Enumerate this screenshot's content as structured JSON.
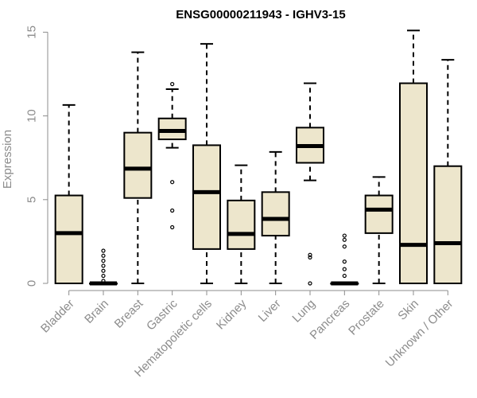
{
  "chart_data": {
    "type": "boxplot",
    "title": "ENSG00000211943 - IGHV3-15",
    "xlabel": "",
    "ylabel": "Expression",
    "ylim": [
      0,
      15.4
    ],
    "yticks": [
      0,
      5,
      10,
      15
    ],
    "categories": [
      "Bladder",
      "Brain",
      "Breast",
      "Gastric",
      "Hematopoietic cells",
      "Kidney",
      "Liver",
      "Lung",
      "Pancreas",
      "Prostate",
      "Skin",
      "Unknown / Other"
    ],
    "box_fill": "#ede6cc",
    "boxes": [
      {
        "category": "Bladder",
        "whisker_low": 0,
        "q1": 0,
        "median": 3.0,
        "q3": 5.25,
        "whisker_high": 10.65,
        "outliers": []
      },
      {
        "category": "Brain",
        "whisker_low": 0,
        "q1": 0,
        "median": 0,
        "q3": 0,
        "whisker_high": 0,
        "outliers": [
          0.15,
          0.45,
          0.75,
          1.05,
          1.35,
          1.65,
          1.95
        ]
      },
      {
        "category": "Breast",
        "whisker_low": 0,
        "q1": 5.1,
        "median": 6.85,
        "q3": 9.0,
        "whisker_high": 13.8,
        "outliers": []
      },
      {
        "category": "Gastric",
        "whisker_low": 8.1,
        "q1": 8.6,
        "median": 9.1,
        "q3": 9.85,
        "whisker_high": 11.6,
        "outliers": [
          3.35,
          4.35,
          6.05,
          11.9
        ]
      },
      {
        "category": "Hematopoietic cells",
        "whisker_low": 0,
        "q1": 2.05,
        "median": 5.45,
        "q3": 8.25,
        "whisker_high": 14.3,
        "outliers": []
      },
      {
        "category": "Kidney",
        "whisker_low": 0,
        "q1": 2.05,
        "median": 2.95,
        "q3": 4.95,
        "whisker_high": 7.05,
        "outliers": []
      },
      {
        "category": "Liver",
        "whisker_low": 0,
        "q1": 2.85,
        "median": 3.85,
        "q3": 5.45,
        "whisker_high": 7.85,
        "outliers": []
      },
      {
        "category": "Lung",
        "whisker_low": 6.15,
        "q1": 7.2,
        "median": 8.2,
        "q3": 9.3,
        "whisker_high": 11.95,
        "outliers": [
          0.0,
          1.55,
          1.7
        ]
      },
      {
        "category": "Pancreas",
        "whisker_low": 0,
        "q1": 0,
        "median": 0,
        "q3": 0,
        "whisker_high": 0,
        "outliers": [
          0.45,
          0.85,
          1.3,
          2.2,
          2.6,
          2.85
        ]
      },
      {
        "category": "Prostate",
        "whisker_low": 0,
        "q1": 3.0,
        "median": 4.4,
        "q3": 5.25,
        "whisker_high": 6.35,
        "outliers": []
      },
      {
        "category": "Skin",
        "whisker_low": 0,
        "q1": 0,
        "median": 2.3,
        "q3": 11.95,
        "whisker_high": 15.1,
        "outliers": []
      },
      {
        "category": "Unknown / Other",
        "whisker_low": 0,
        "q1": 0,
        "median": 2.4,
        "q3": 7.0,
        "whisker_high": 13.35,
        "outliers": []
      }
    ],
    "grid": false,
    "legend": "none"
  }
}
